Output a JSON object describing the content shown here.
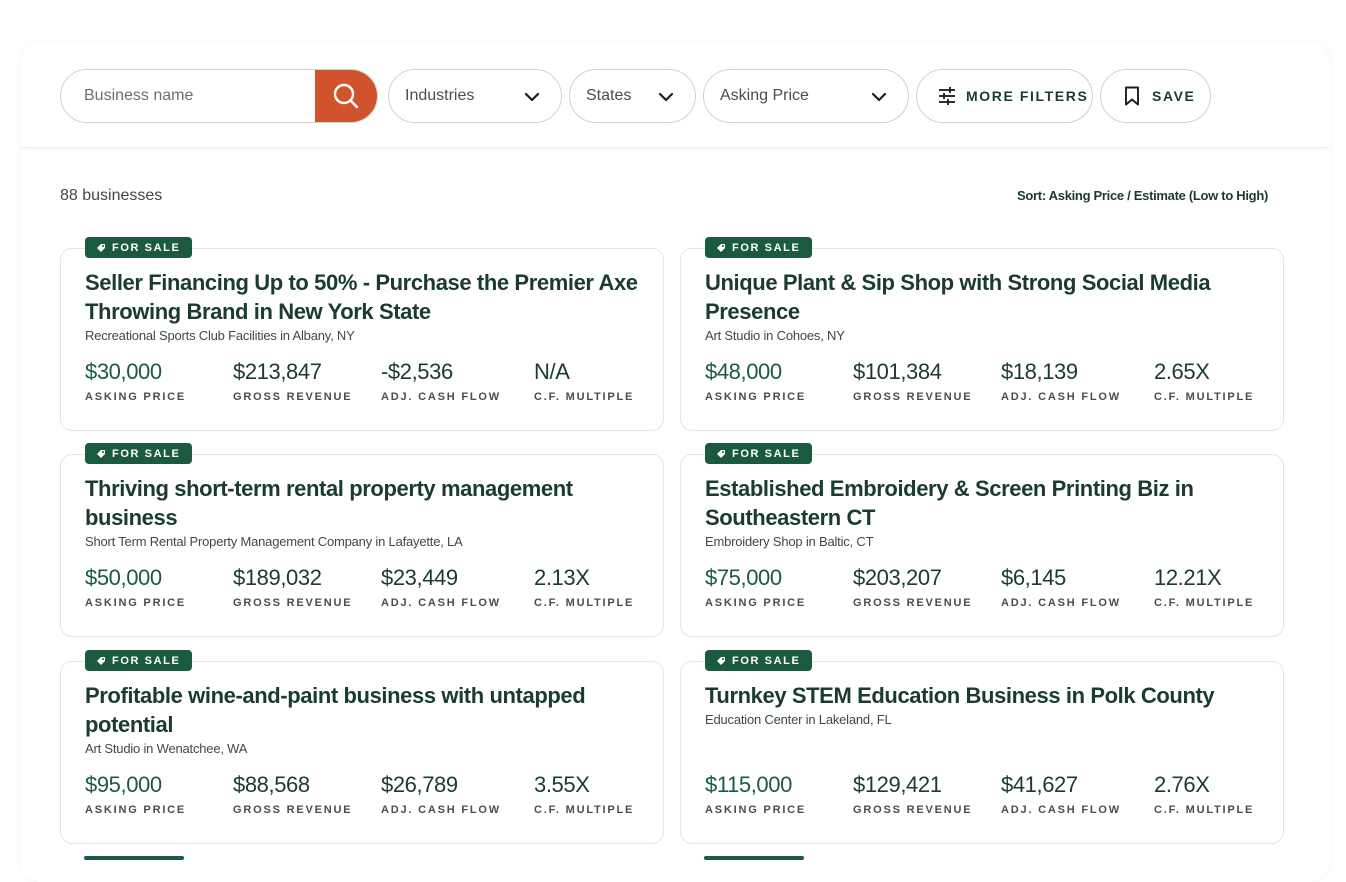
{
  "search": {
    "placeholder": "Business name"
  },
  "filters": {
    "industries": "Industries",
    "states": "States",
    "asking_price": "Asking Price",
    "more_filters": "MORE FILTERS",
    "save": "SAVE"
  },
  "results": {
    "count": "88 businesses",
    "sort": "Sort: Asking Price / Estimate (Low to High)"
  },
  "colors": {
    "accent_search": "#d0532c",
    "badge_green": "#1c5a40",
    "text_dark": "#1c3b2f"
  },
  "metric_labels": {
    "asking": "ASKING PRICE",
    "revenue": "GROSS REVENUE",
    "cashflow": "ADJ. CASH FLOW",
    "multiple": "C.F. MULTIPLE"
  },
  "listings": [
    {
      "badge": "FOR SALE",
      "title": "Seller Financing Up to 50% - Purchase the Premier Axe Throwing Brand in New York State",
      "subtitle": "Recreational Sports Club Facilities in Albany, NY",
      "asking_price": "$30,000",
      "gross_revenue": "$213,847",
      "cash_flow": "-$2,536",
      "multiple": "N/A"
    },
    {
      "badge": "FOR SALE",
      "title": "Unique Plant & Sip Shop with Strong Social Media Presence",
      "subtitle": "Art Studio in Cohoes, NY",
      "asking_price": "$48,000",
      "gross_revenue": "$101,384",
      "cash_flow": "$18,139",
      "multiple": "2.65X"
    },
    {
      "badge": "FOR SALE",
      "title": "Thriving short-term rental property management business",
      "subtitle": "Short Term Rental Property Management Company in Lafayette, LA",
      "asking_price": "$50,000",
      "gross_revenue": "$189,032",
      "cash_flow": "$23,449",
      "multiple": "2.13X"
    },
    {
      "badge": "FOR SALE",
      "title": "Established Embroidery & Screen Printing Biz in Southeastern CT",
      "subtitle": "Embroidery Shop in Baltic, CT",
      "asking_price": "$75,000",
      "gross_revenue": "$203,207",
      "cash_flow": "$6,145",
      "multiple": "12.21X"
    },
    {
      "badge": "FOR SALE",
      "title": "Profitable wine-and-paint business with untapped potential",
      "subtitle": "Art Studio in Wenatchee, WA",
      "asking_price": "$95,000",
      "gross_revenue": "$88,568",
      "cash_flow": "$26,789",
      "multiple": "3.55X"
    },
    {
      "badge": "FOR SALE",
      "title": "Turnkey STEM Education Business in Polk County",
      "subtitle": "Education Center in Lakeland, FL",
      "asking_price": "$115,000",
      "gross_revenue": "$129,421",
      "cash_flow": "$41,627",
      "multiple": "2.76X"
    }
  ]
}
